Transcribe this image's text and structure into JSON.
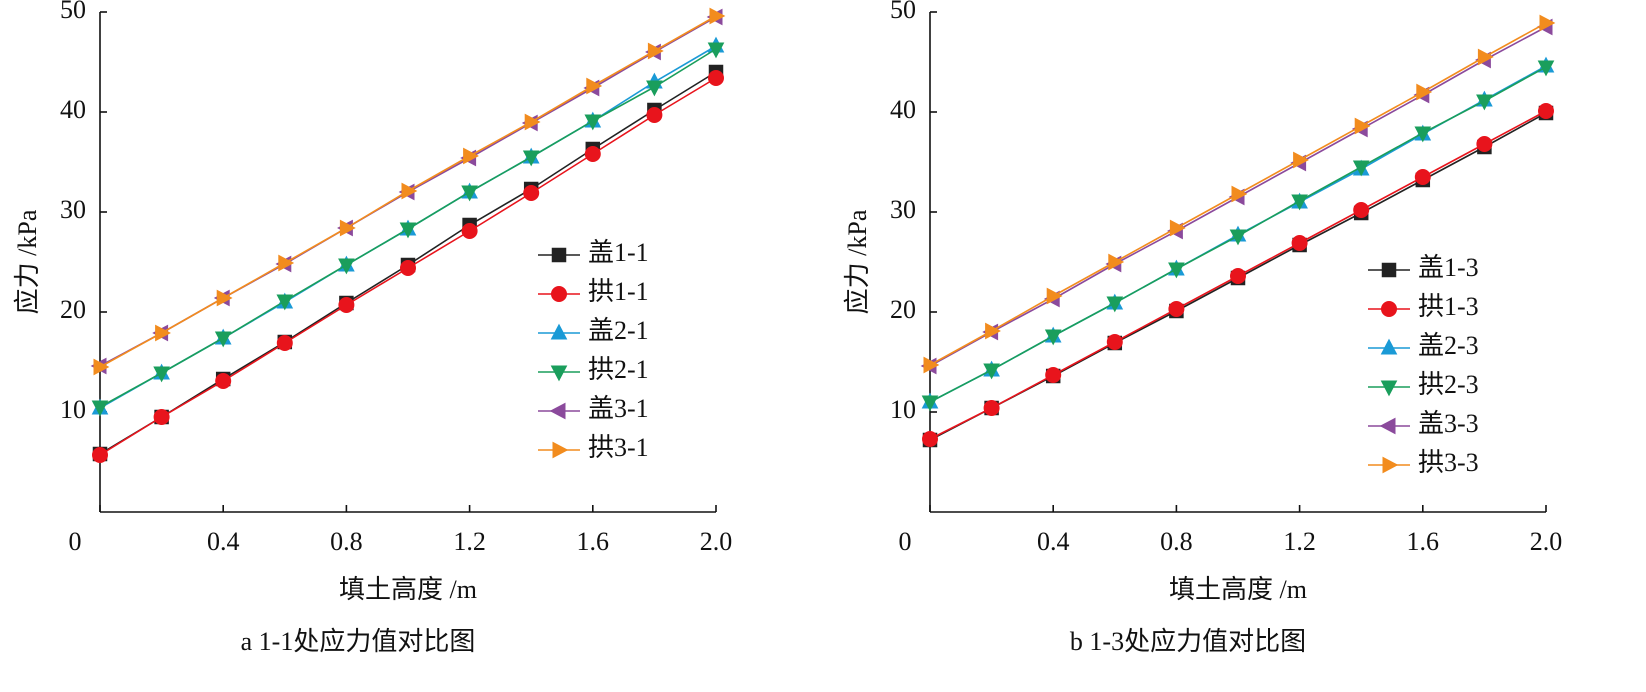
{
  "chart_data": [
    {
      "type": "line",
      "caption": "a 1-1处应力值对比图",
      "xlabel": "填土高度 /m",
      "ylabel": "应力 /kPa",
      "x": [
        0,
        0.2,
        0.4,
        0.6,
        0.8,
        1.0,
        1.2,
        1.4,
        1.6,
        1.8,
        2.0
      ],
      "xlim": [
        0,
        2
      ],
      "xticks": [
        0,
        0.4,
        0.8,
        1.2,
        1.6,
        {
          "value": 2,
          "label": "2.0"
        }
      ],
      "ylim": [
        0,
        50
      ],
      "yticks": [
        10,
        20,
        30,
        40,
        50
      ],
      "grid": false,
      "legend": "center right",
      "series": [
        {
          "name": "盖1-1",
          "color": "#222222",
          "marker": "square",
          "values": [
            5.8,
            9.5,
            13.3,
            17.0,
            20.9,
            24.7,
            28.7,
            32.3,
            36.3,
            40.2,
            44.0
          ]
        },
        {
          "name": "拱1-1",
          "color": "#e8141c",
          "marker": "circle",
          "values": [
            5.7,
            9.5,
            13.1,
            16.9,
            20.7,
            24.4,
            28.1,
            31.9,
            35.8,
            39.7,
            43.4
          ]
        },
        {
          "name": "盖2-1",
          "color": "#1a9ad6",
          "marker": "triangle-up",
          "values": [
            10.4,
            13.9,
            17.4,
            21.0,
            24.7,
            28.3,
            32.0,
            35.5,
            39.1,
            43.0,
            46.6
          ]
        },
        {
          "name": "拱2-1",
          "color": "#1a9e5c",
          "marker": "triangle-down",
          "values": [
            10.5,
            13.9,
            17.4,
            21.1,
            24.7,
            28.3,
            32.0,
            35.5,
            39.1,
            42.5,
            46.3
          ]
        },
        {
          "name": "盖3-1",
          "color": "#8b4a9c",
          "marker": "triangle-left",
          "values": [
            14.6,
            17.9,
            21.4,
            24.8,
            28.4,
            32.0,
            35.4,
            38.9,
            42.4,
            46.0,
            49.5
          ]
        },
        {
          "name": "拱3-1",
          "color": "#f28c1e",
          "marker": "triangle-right",
          "values": [
            14.5,
            17.9,
            21.4,
            24.9,
            28.4,
            32.1,
            35.6,
            39.0,
            42.6,
            46.1,
            49.6
          ]
        }
      ]
    },
    {
      "type": "line",
      "caption": "b 1-3处应力值对比图",
      "xlabel": "填土高度 /m",
      "ylabel": "应力 /kPa",
      "x": [
        0,
        0.2,
        0.4,
        0.6,
        0.8,
        1.0,
        1.2,
        1.4,
        1.6,
        1.8,
        2.0
      ],
      "xlim": [
        0,
        2
      ],
      "xticks": [
        0,
        0.4,
        0.8,
        1.2,
        1.6,
        {
          "value": 2,
          "label": "2.0"
        }
      ],
      "ylim": [
        0,
        50
      ],
      "yticks": [
        10,
        20,
        30,
        40,
        50
      ],
      "grid": false,
      "legend": "lower right",
      "series": [
        {
          "name": "盖1-3",
          "color": "#222222",
          "marker": "square",
          "values": [
            7.2,
            10.4,
            13.6,
            16.9,
            20.1,
            23.4,
            26.7,
            29.9,
            33.2,
            36.5,
            39.9
          ]
        },
        {
          "name": "拱1-3",
          "color": "#e8141c",
          "marker": "circle",
          "values": [
            7.3,
            10.4,
            13.7,
            17.0,
            20.3,
            23.6,
            26.9,
            30.2,
            33.5,
            36.8,
            40.1
          ]
        },
        {
          "name": "盖2-3",
          "color": "#1a9ad6",
          "marker": "triangle-up",
          "values": [
            11.0,
            14.2,
            17.6,
            20.9,
            24.3,
            27.7,
            31.0,
            34.3,
            37.8,
            41.2,
            44.6
          ]
        },
        {
          "name": "拱2-3",
          "color": "#1a9e5c",
          "marker": "triangle-down",
          "values": [
            11.0,
            14.2,
            17.6,
            20.9,
            24.3,
            27.6,
            31.1,
            34.5,
            37.9,
            41.1,
            44.5
          ]
        },
        {
          "name": "盖3-3",
          "color": "#8b4a9c",
          "marker": "triangle-left",
          "values": [
            14.6,
            18.0,
            21.3,
            24.8,
            28.1,
            31.5,
            34.9,
            38.3,
            41.7,
            45.2,
            48.5
          ]
        },
        {
          "name": "拱3-3",
          "color": "#f28c1e",
          "marker": "triangle-right",
          "values": [
            14.7,
            18.1,
            21.6,
            25.0,
            28.4,
            31.8,
            35.2,
            38.6,
            42.0,
            45.5,
            48.9
          ]
        }
      ]
    }
  ]
}
